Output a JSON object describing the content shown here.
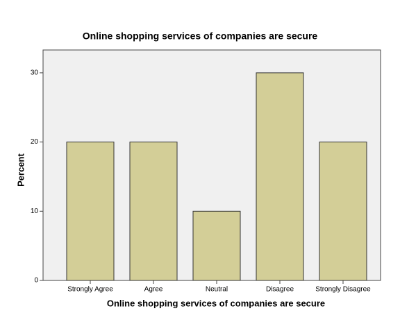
{
  "chart_data": {
    "type": "bar",
    "title": "Online shopping services of companies are secure",
    "x_label": "Online shopping services of companies are secure",
    "y_label": "Percent",
    "categories": [
      "Strongly Agree",
      "Agree",
      "Neutral",
      "Disagree",
      "Strongly Disagree"
    ],
    "values": [
      20,
      20,
      10,
      30,
      20
    ],
    "color": "#d3ce97",
    "ylim": [
      0,
      33.3
    ],
    "yticks": [
      0,
      10,
      20,
      30
    ],
    "grid": false
  }
}
